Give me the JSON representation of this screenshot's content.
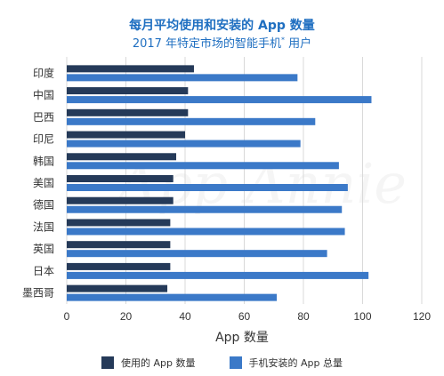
{
  "chart_data": {
    "type": "bar",
    "orientation": "horizontal",
    "title": "每月平均使用和安装的 App 数量",
    "subtitle": {
      "text": "2017 年特定市场的智能手机",
      "superscript": "*",
      "suffix": " 用户"
    },
    "xlabel": "App 数量",
    "ylabel": "",
    "xlim": [
      0,
      120
    ],
    "xticks": [
      "0",
      "20",
      "40",
      "60",
      "80",
      "100",
      "120"
    ],
    "grid": true,
    "legend_position": "bottom",
    "categories": [
      "印度",
      "中国",
      "巴西",
      "印尼",
      "韩国",
      "美国",
      "德国",
      "法国",
      "英国",
      "日本",
      "墨西哥"
    ],
    "series": [
      {
        "name": "使用的 App 数量",
        "color": "#253a59",
        "values": [
          43,
          41,
          41,
          40,
          37,
          36,
          36,
          35,
          35,
          35,
          34
        ]
      },
      {
        "name": "手机安装的 App 总量",
        "color": "#3b79c8",
        "values": [
          78,
          103,
          84,
          79,
          92,
          95,
          93,
          94,
          88,
          102,
          71
        ]
      }
    ],
    "watermark": "App Annie"
  },
  "colors": {
    "title": "#1f6fc1",
    "grid": "#d9d9d9",
    "axis_text": "#333333"
  }
}
